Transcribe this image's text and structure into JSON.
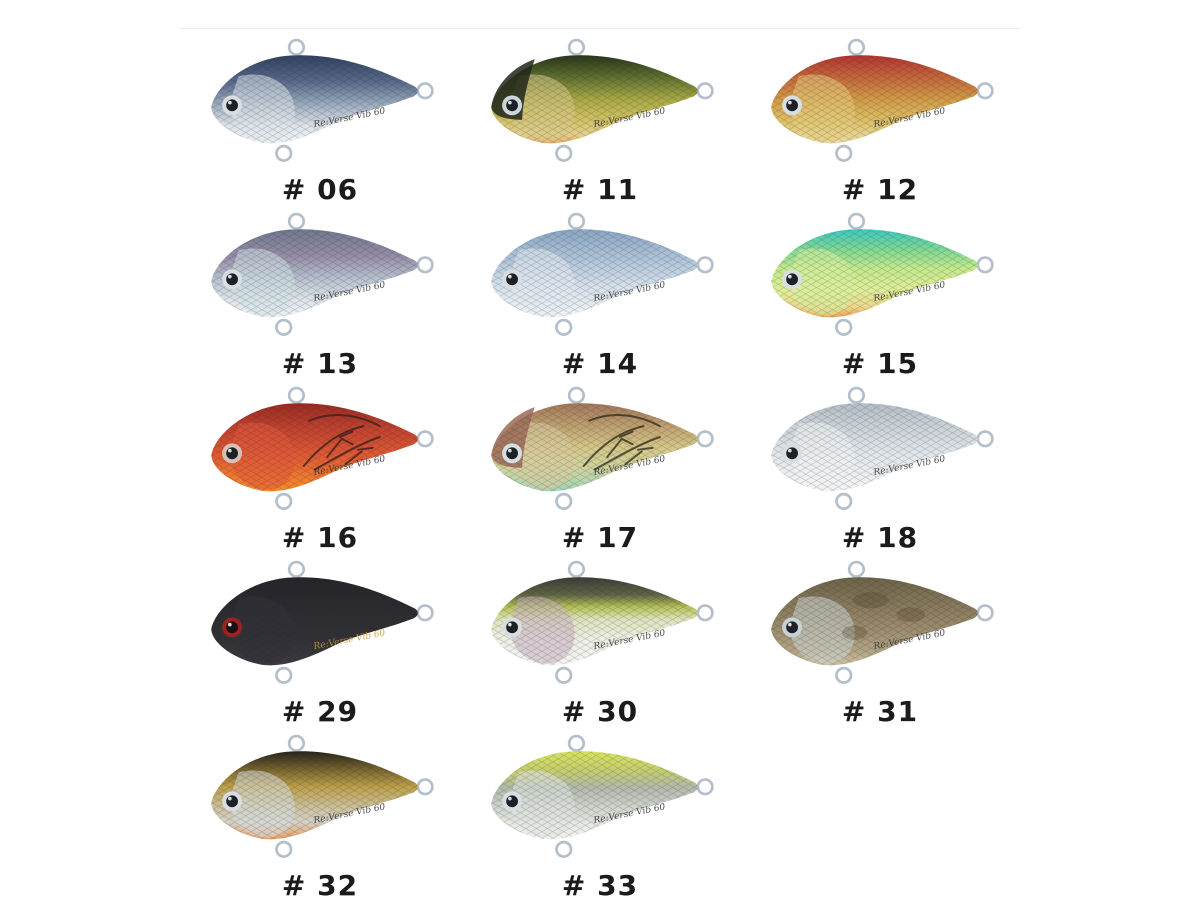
{
  "page": {
    "background": "#ffffff",
    "top_border_color": "#e8eaec",
    "label_color": "#1b1b1b",
    "hardware_color": "#b3bfca"
  },
  "branding": {
    "model_script_text": "Re:Verse Vib 60"
  },
  "lures": [
    {
      "code": "# 06",
      "stops": [
        [
          0,
          "#31405f"
        ],
        [
          30,
          "#58698a"
        ],
        [
          55,
          "#9aa9bc"
        ],
        [
          80,
          "#dde3e8"
        ],
        [
          100,
          "#f0f2f4"
        ]
      ],
      "gill": "#dfe5ea",
      "eye_ring": "#d8dde2",
      "eye_pupil": "#1d2126",
      "text_color": "#2f2f2f"
    },
    {
      "code": "# 11",
      "stops": [
        [
          0,
          "#2b331b"
        ],
        [
          25,
          "#5f7030"
        ],
        [
          50,
          "#a8a844"
        ],
        [
          72,
          "#cfc063"
        ],
        [
          90,
          "#e3cf8a"
        ],
        [
          100,
          "#e8b06a"
        ]
      ],
      "gill": "#d9c98a",
      "head": "#20261a",
      "eye_ring": "#cdd5dc",
      "eye_pupil": "#1d2126",
      "text_color": "#2f2f2f"
    },
    {
      "code": "# 12",
      "stops": [
        [
          0,
          "#b23430"
        ],
        [
          25,
          "#c4663a"
        ],
        [
          50,
          "#d19a46"
        ],
        [
          75,
          "#ddc168"
        ],
        [
          100,
          "#ecdca6"
        ]
      ],
      "gill": "#e6cc7e",
      "eye_ring": "#d8dde2",
      "eye_pupil": "#1d2126",
      "text_color": "#2f2f2f"
    },
    {
      "code": "# 13",
      "stops": [
        [
          0,
          "#70798f"
        ],
        [
          30,
          "#958ba6"
        ],
        [
          55,
          "#b4bfcc"
        ],
        [
          80,
          "#dde4ea"
        ],
        [
          100,
          "#eef1f4"
        ]
      ],
      "gill": "#cfe0e4",
      "eye_ring": "#d8dde2",
      "eye_pupil": "#1d2126",
      "text_color": "#2f2f2f"
    },
    {
      "code": "# 14",
      "stops": [
        [
          0,
          "#8aa6c4"
        ],
        [
          35,
          "#b0c4d8"
        ],
        [
          65,
          "#d5e0ea"
        ],
        [
          100,
          "#f0f4f7"
        ]
      ],
      "gill": "#e2eaf1",
      "eye_ring": "#d8dde2",
      "eye_pupil": "#1d2126",
      "text_color": "#2f2f2f"
    },
    {
      "code": "# 15",
      "stops": [
        [
          0,
          "#3fc7c3"
        ],
        [
          22,
          "#7cd795"
        ],
        [
          45,
          "#c4e98c"
        ],
        [
          70,
          "#dfee9a"
        ],
        [
          88,
          "#ecd98c"
        ],
        [
          100,
          "#f0a455"
        ]
      ],
      "gill": "#d5ee9e",
      "eye_ring": "#d8dde2",
      "eye_pupil": "#1d2126",
      "text_color": "#2f2f2f"
    },
    {
      "code": "# 16",
      "stops": [
        [
          0,
          "#992b22"
        ],
        [
          30,
          "#c2432f"
        ],
        [
          60,
          "#e05a33"
        ],
        [
          85,
          "#ef7a2e"
        ],
        [
          100,
          "#f68c2a"
        ]
      ],
      "gill": "#e0573a",
      "craw": "#401f1c",
      "eye_ring": "#d8c0b8",
      "eye_pupil": "#1d2126",
      "text_color": "#2f2f2f"
    },
    {
      "code": "# 17",
      "stops": [
        [
          0,
          "#a1765a"
        ],
        [
          28,
          "#c0a370"
        ],
        [
          52,
          "#d6c98a"
        ],
        [
          75,
          "#cfd4a0"
        ],
        [
          100,
          "#a2d6b6"
        ]
      ],
      "gill": "#d9c9a0",
      "head": "#9b6b58",
      "craw": "#35301f",
      "eye_ring": "#d8dde2",
      "eye_pupil": "#1d2126",
      "text_color": "#2f2f2f"
    },
    {
      "code": "# 18",
      "stops": [
        [
          0,
          "#b4bec6"
        ],
        [
          30,
          "#ccd4d9"
        ],
        [
          60,
          "#e3e7ea"
        ],
        [
          100,
          "#f4f5f6"
        ]
      ],
      "gill": "#f0f2f3",
      "eye_ring": "#d8dde2",
      "eye_pupil": "#1d2126",
      "text_color": "#2f2f2f"
    },
    {
      "code": "# 29",
      "stops": [
        [
          0,
          "#252529"
        ],
        [
          40,
          "#2c2c30"
        ],
        [
          75,
          "#323236"
        ],
        [
          100,
          "#3b3b41"
        ]
      ],
      "gill": "#313136",
      "eye_ring": "#9c2220",
      "eye_pupil": "#191113",
      "text_color": "#c59a35"
    },
    {
      "code": "# 30",
      "stops": [
        [
          0,
          "#3b3d37"
        ],
        [
          20,
          "#606444"
        ],
        [
          34,
          "#b7c258"
        ],
        [
          48,
          "#dfe3bc"
        ],
        [
          70,
          "#edeee4"
        ],
        [
          100,
          "#f5f5f1"
        ]
      ],
      "gill": "#c4afc0",
      "eye_ring": "#d8dde2",
      "eye_pupil": "#1d2126",
      "text_color": "#2f2f2f"
    },
    {
      "code": "# 31",
      "stops": [
        [
          0,
          "#6d6347"
        ],
        [
          30,
          "#85775a"
        ],
        [
          60,
          "#9c8d6e"
        ],
        [
          85,
          "#b4a685"
        ],
        [
          100,
          "#cfc3a4"
        ]
      ],
      "gill": "#ccd6d4",
      "mottle": "#4a3f28",
      "eye_ring": "#c8d2d4",
      "eye_pupil": "#1d2126",
      "text_color": "#2f2f2f"
    },
    {
      "code": "# 32",
      "stops": [
        [
          0,
          "#26231a"
        ],
        [
          18,
          "#6d5c2c"
        ],
        [
          40,
          "#bd9f48"
        ],
        [
          62,
          "#cbbd94"
        ],
        [
          80,
          "#d5d2c8"
        ],
        [
          100,
          "#eb9f64"
        ]
      ],
      "gill": "#d6dcde",
      "eye_ring": "#d8dde2",
      "eye_pupil": "#1d2126",
      "text_color": "#2f2f2f"
    },
    {
      "code": "# 33",
      "stops": [
        [
          0,
          "#d7e360"
        ],
        [
          22,
          "#c5cd6e"
        ],
        [
          42,
          "#b3b9ac"
        ],
        [
          62,
          "#cdd1ca"
        ],
        [
          82,
          "#e6e8e3"
        ],
        [
          100,
          "#f3f4f1"
        ]
      ],
      "gill": "#dfe3e2",
      "eye_ring": "#d8dde2",
      "eye_pupil": "#1d2126",
      "text_color": "#2f2f2f"
    }
  ]
}
